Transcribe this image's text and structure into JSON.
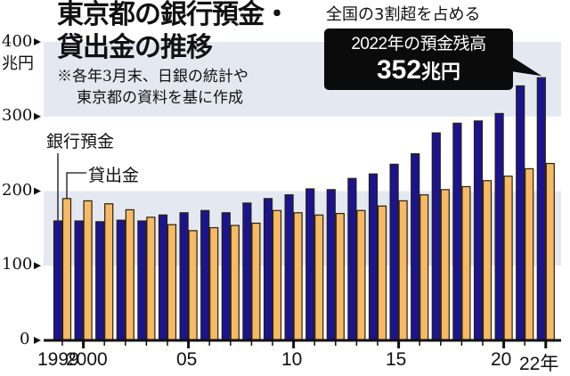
{
  "chart_data": {
    "type": "bar",
    "title": "東京都の銀行預金・貸出金の推移",
    "subtitle": "全国の3割超を占める",
    "note": [
      "※各年3月末、日銀の統計や",
      "東京都の資料を基に作成"
    ],
    "xlabel": "",
    "ylabel": "兆円",
    "ylim": [
      0,
      400
    ],
    "yticks": [
      0,
      100,
      200,
      300,
      400
    ],
    "grid": "alternating shaded bands (100-200, 300-400)",
    "legend_position": "upper-left, leader lines to first bars",
    "categories": [
      "1999",
      "2000",
      "2001",
      "2002",
      "2003",
      "2004",
      "2005",
      "2006",
      "2007",
      "2008",
      "2009",
      "2010",
      "2011",
      "2012",
      "2013",
      "2014",
      "2015",
      "2016",
      "2017",
      "2018",
      "2019",
      "2020",
      "2021",
      "2022"
    ],
    "x_tick_labels": [
      {
        "year": "1999",
        "label": "1999"
      },
      {
        "year": "2000",
        "label": "2000"
      },
      {
        "year": "2005",
        "label": "05"
      },
      {
        "year": "2010",
        "label": "10"
      },
      {
        "year": "2015",
        "label": "15"
      },
      {
        "year": "2020",
        "label": "20"
      },
      {
        "year": "2022",
        "label": "22年"
      }
    ],
    "series": [
      {
        "name": "銀行預金",
        "color": "#1a1490",
        "values": [
          160,
          160,
          159,
          161,
          160,
          168,
          171,
          174,
          171,
          184,
          190,
          195,
          203,
          202,
          217,
          223,
          236,
          250,
          278,
          291,
          294,
          304,
          341,
          352
        ]
      },
      {
        "name": "貸出金",
        "color": "#f7b964",
        "values": [
          190,
          187,
          183,
          175,
          165,
          155,
          147,
          151,
          154,
          157,
          174,
          171,
          168,
          170,
          174,
          180,
          187,
          195,
          202,
          206,
          214,
          220,
          230,
          237
        ]
      }
    ],
    "annotation": {
      "line1": "2022年の預金残高",
      "value": "352",
      "unit": "兆円",
      "target_year": "2022"
    }
  },
  "colors": {
    "deposit": "#1a1490",
    "loan": "#f7b964",
    "bar_outline": "#2a2010",
    "band": "#e4e9f1",
    "callout_bg": "#0b0b0b"
  },
  "labels": {
    "y_unit": "兆円",
    "ytick_0": "0",
    "ytick_100": "100",
    "ytick_200": "200",
    "ytick_300": "300",
    "ytick_400": "400",
    "legend_deposit": "銀行預金",
    "legend_loan": "貸出金"
  }
}
